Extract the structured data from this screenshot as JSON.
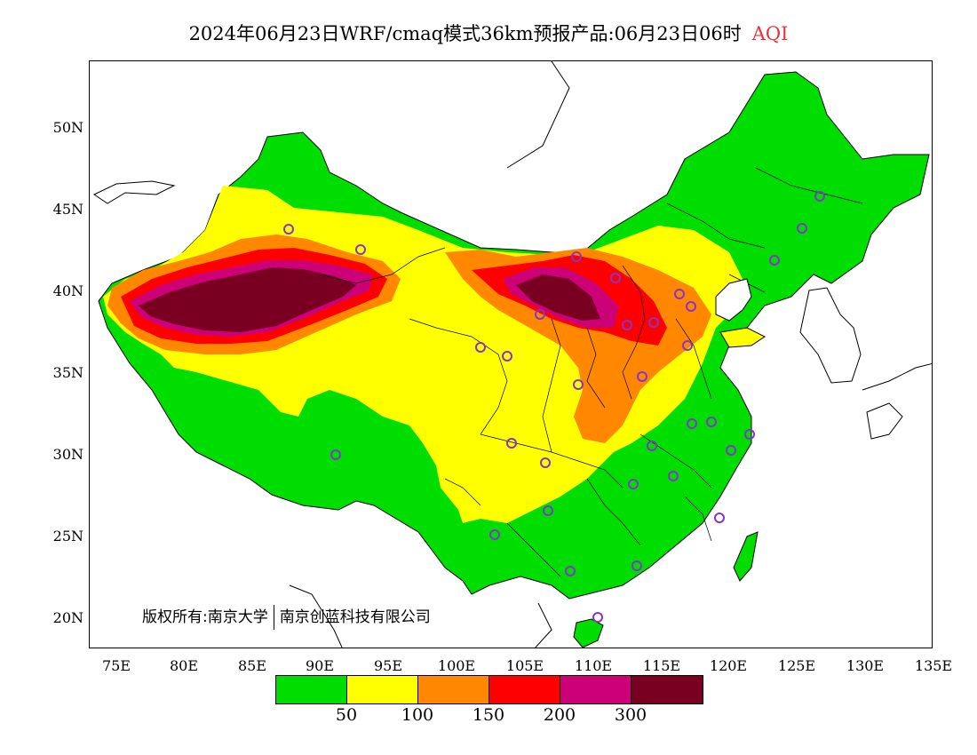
{
  "title": {
    "main": "2024年06月23日WRF/cmaq模式36km预报产品:06月23日06时",
    "variable": "AQI"
  },
  "axes": {
    "lat_labels": [
      "50N",
      "45N",
      "40N",
      "35N",
      "30N",
      "25N",
      "20N"
    ],
    "lon_labels": [
      "75E",
      "80E",
      "85E",
      "90E",
      "95E",
      "100E",
      "105E",
      "110E",
      "115E",
      "120E",
      "125E",
      "130E",
      "135E"
    ]
  },
  "copyright": {
    "owner": "版权所有:南京大学",
    "partner": "南京创蓝科技有限公司"
  },
  "legend": {
    "colors": [
      "#00dd00",
      "#ffff00",
      "#ff8800",
      "#ff0000",
      "#cc0077",
      "#7a0022"
    ],
    "labels": [
      "50",
      "100",
      "150",
      "200",
      "300"
    ]
  },
  "colors": {
    "good": "#00dd00",
    "moderate": "#ffff00",
    "unhealthy_sensitive": "#ff8800",
    "unhealthy": "#ff0000",
    "very_unhealthy": "#cc0077",
    "hazardous": "#7a0022",
    "station_marker": "#8833cc"
  }
}
